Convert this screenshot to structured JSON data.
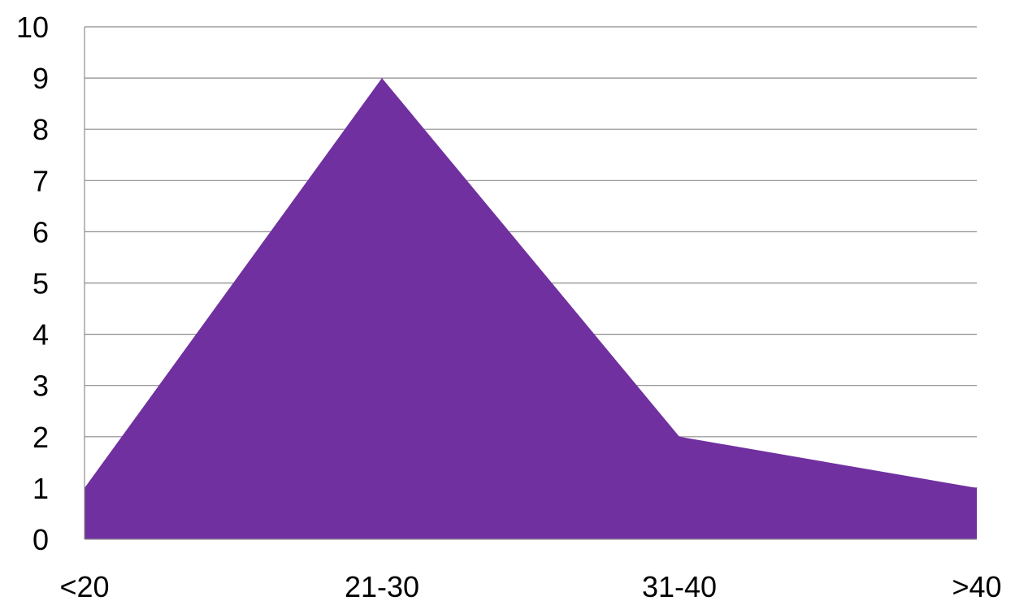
{
  "chart_data": {
    "type": "area",
    "categories": [
      "<20",
      "21-30",
      "31-40",
      ">40"
    ],
    "series": [
      {
        "values": [
          1,
          9,
          2,
          1
        ]
      }
    ],
    "yticks": [
      "0",
      "1",
      "2",
      "3",
      "4",
      "5",
      "6",
      "7",
      "8",
      "9",
      "10"
    ],
    "ylim": [
      0,
      10
    ],
    "grid": true,
    "fill_color": "#7030a0",
    "gridline_color": "#8c8c8c",
    "title": "",
    "xlabel": "",
    "ylabel": ""
  }
}
